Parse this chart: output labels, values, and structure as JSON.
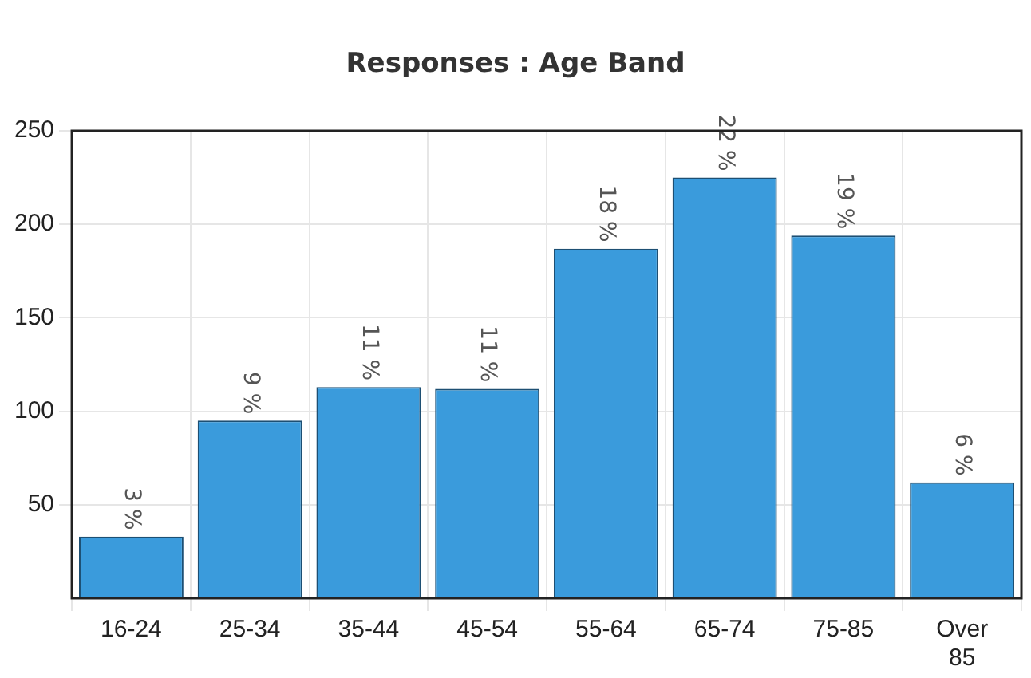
{
  "chart_data": {
    "type": "bar",
    "title": "Responses : Age Band",
    "categories": [
      "16-24",
      "25-34",
      "35-44",
      "45-54",
      "55-64",
      "65-74",
      "75-85",
      "Over 85"
    ],
    "values": [
      33,
      95,
      113,
      112,
      187,
      225,
      194,
      62
    ],
    "annotations": [
      {
        "text": "3 %",
        "x": "16-24",
        "y": 33
      },
      {
        "text": "9 %",
        "x": "25-34",
        "y": 95
      },
      {
        "text": "11 %",
        "x": "35-44",
        "y": 113
      },
      {
        "text": "11 %",
        "x": "45-54",
        "y": 112
      },
      {
        "text": "18 %",
        "x": "55-64",
        "y": 187
      },
      {
        "text": "22 %",
        "x": "65-74",
        "y": 225
      },
      {
        "text": "19 %",
        "x": "75-85",
        "y": 194
      },
      {
        "text": "6 %",
        "x": "Over 85",
        "y": 62
      }
    ],
    "color": "#3a9bdc",
    "ylim": [
      0,
      250
    ],
    "yticks": [
      50,
      100,
      150,
      200,
      250
    ],
    "grid": true,
    "legend": false
  }
}
